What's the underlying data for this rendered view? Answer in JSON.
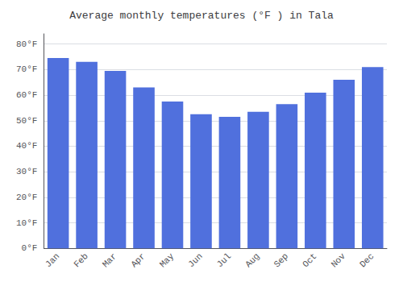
{
  "chart_data": {
    "type": "bar",
    "title": "Average monthly temperatures (°F ) in Tala",
    "categories": [
      "Jan",
      "Feb",
      "Mar",
      "Apr",
      "May",
      "Jun",
      "Jul",
      "Aug",
      "Sep",
      "Oct",
      "Nov",
      "Dec"
    ],
    "values": [
      74.5,
      73.0,
      69.5,
      63.0,
      57.5,
      52.5,
      51.5,
      53.5,
      56.5,
      61.0,
      66.0,
      71.0
    ],
    "ylim": [
      0,
      84
    ],
    "yticks": [
      {
        "value": 0,
        "label": "0°F"
      },
      {
        "value": 10,
        "label": "10°F"
      },
      {
        "value": 20,
        "label": "20°F"
      },
      {
        "value": 30,
        "label": "30°F"
      },
      {
        "value": 40,
        "label": "40°F"
      },
      {
        "value": 50,
        "label": "50°F"
      },
      {
        "value": 60,
        "label": "60°F"
      },
      {
        "value": 70,
        "label": "70°F"
      },
      {
        "value": 80,
        "label": "80°F"
      }
    ],
    "grid": true
  }
}
